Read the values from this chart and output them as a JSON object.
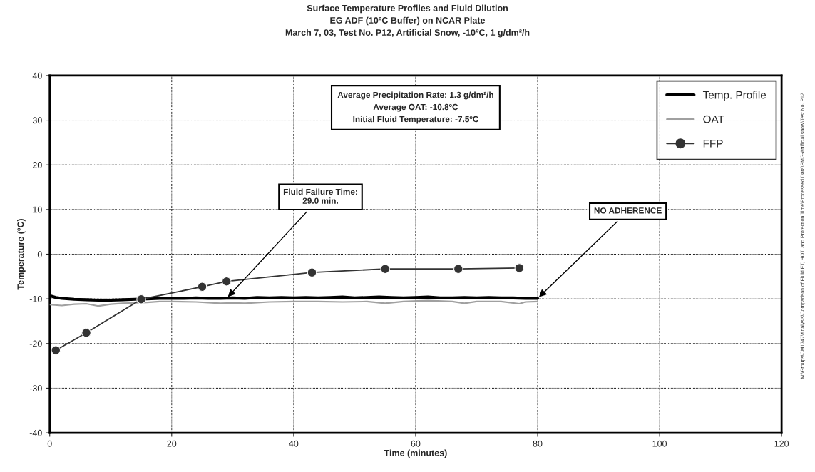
{
  "chart_data": {
    "type": "line",
    "title": "Surface Temperature Profiles and Fluid Dilution\nEG ADF (10ºC Buffer) on NCAR Plate\nMarch 7, 03, Test No. P12, Artificial Snow, -10ºC, 1 g/dm²/h",
    "xlabel": "Time (minutes)",
    "ylabel": "Temperature (ºC)",
    "xlim": [
      0,
      120
    ],
    "xticks": [
      0,
      20,
      40,
      60,
      80,
      100,
      120
    ],
    "ylim": [
      -40,
      40
    ],
    "yticks": [
      -40,
      -30,
      -20,
      -10,
      0,
      10,
      20,
      30,
      40
    ],
    "grid": true,
    "legend": "top right",
    "series": [
      {
        "name": "Temp. Profile",
        "color": "#000000",
        "marker": "none",
        "x": [
          0,
          1,
          2,
          4,
          6,
          8,
          10,
          12,
          14,
          16,
          18,
          20,
          22,
          24,
          26,
          28,
          30,
          32,
          34,
          36,
          38,
          40,
          42,
          44,
          46,
          48,
          50,
          52,
          54,
          56,
          58,
          60,
          62,
          64,
          66,
          68,
          70,
          72,
          74,
          76,
          78,
          80
        ],
        "values": [
          -9.3,
          -9.7,
          -9.9,
          -10.1,
          -10.2,
          -10.3,
          -10.3,
          -10.2,
          -10.1,
          -10.0,
          -9.9,
          -9.9,
          -9.9,
          -9.8,
          -9.9,
          -9.9,
          -9.8,
          -9.9,
          -9.7,
          -9.8,
          -9.7,
          -9.8,
          -9.7,
          -9.8,
          -9.7,
          -9.6,
          -9.8,
          -9.7,
          -9.6,
          -9.7,
          -9.8,
          -9.7,
          -9.6,
          -9.8,
          -9.8,
          -9.7,
          -9.8,
          -9.7,
          -9.8,
          -9.8,
          -9.9,
          -9.9
        ]
      },
      {
        "name": "OAT",
        "color": "#a0a0a0",
        "marker": "none",
        "x": [
          0,
          2,
          4,
          6,
          8,
          10,
          12,
          14,
          16,
          18,
          20,
          24,
          28,
          30,
          32,
          36,
          40,
          44,
          48,
          52,
          55,
          58,
          62,
          66,
          68,
          70,
          74,
          77,
          78,
          80
        ],
        "values": [
          -11.3,
          -11.5,
          -11.2,
          -11.1,
          -11.6,
          -11.2,
          -11.0,
          -10.9,
          -10.8,
          -10.6,
          -10.6,
          -10.7,
          -11.0,
          -10.9,
          -11.0,
          -10.7,
          -10.6,
          -10.6,
          -10.7,
          -10.6,
          -11.0,
          -10.6,
          -10.4,
          -10.6,
          -11.0,
          -10.6,
          -10.6,
          -11.1,
          -10.7,
          -10.6
        ]
      },
      {
        "name": "FFP",
        "color": "#333333",
        "marker": "circle",
        "x": [
          1,
          6,
          15,
          25,
          29,
          43,
          55,
          67,
          77
        ],
        "values": [
          -21.5,
          -17.6,
          -10.1,
          -7.3,
          -6.1,
          -4.1,
          -3.3,
          -3.3,
          -3.1
        ]
      }
    ],
    "annotations": [
      "Average Precipitation Rate: 1.3 g/dm²/h\nAverage OAT: -10.8ºC\nInitial Fluid Temperature: -7.5ºC",
      {
        "text": "Fluid Failure Time:\n29.0 min.",
        "x": 29,
        "y": -9.9
      },
      {
        "text": "NO ADHERENCE",
        "x": 80,
        "y": -9.9
      },
      "M:\\Groups\\CM1747\\Analysis\\Comparison of Fluid ET, HOT, and Protection Time\\Processed Data\\PMG-Artificial snow\\Test No. P12"
    ]
  }
}
